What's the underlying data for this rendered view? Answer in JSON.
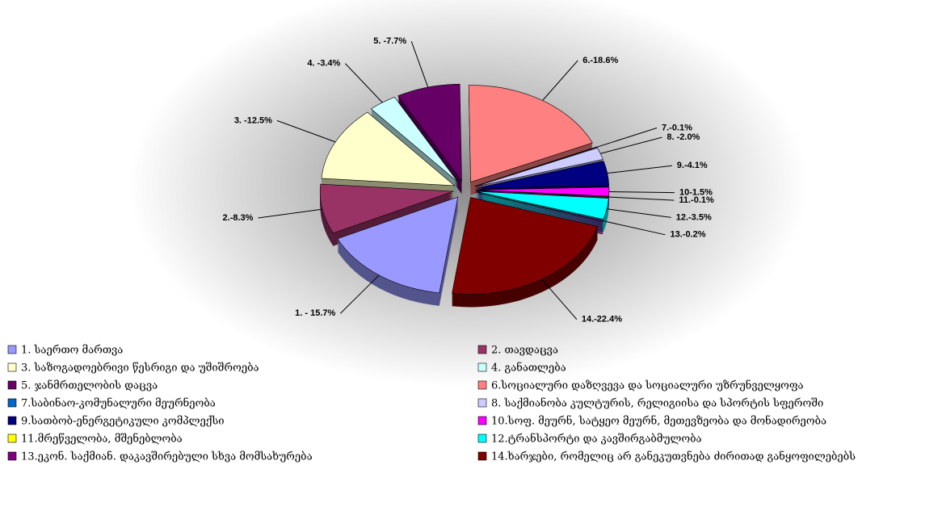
{
  "chart_data": {
    "type": "pie",
    "categories": [
      "1. საერთო მართვა",
      "2. თავდაცვა",
      "3. საზოგადოებრივი წესრიგი და უშიშროება",
      "4. განათლება",
      "5. ჯანმრთელობის დაცვა",
      "6.სოციალური დაზღვევა და სოციალური უზრუნველყოფა",
      "7.საბინაო-კომუნალური მეურნეობა",
      "8. საქმიანობა კულტურის, რელიგიისა და სპორტის სფეროში",
      "9.სათბობ-ენერგეტიკული კომპლექსი",
      "10.სოფ. მეურნ, სატყეო მეურნ, მეთევზეობა და მონადირეობა",
      "11.მრეწველობა, მშენებლობა",
      "12.ტრანსპორტი და კავშირგაბმულობა",
      "13.ეკონ. საქმიან. დაკავშირებული სხვა მომსახურება",
      "14.ხარჯები, რომელიც არ განეკუთვნება ძირითად განყოფილებებს"
    ],
    "values": [
      15.7,
      8.3,
      12.5,
      3.4,
      7.7,
      18.6,
      0.1,
      2.0,
      4.1,
      1.5,
      0.1,
      3.5,
      0.2,
      22.4
    ],
    "value_labels": [
      "1. - 15.7%",
      "2.-8.3%",
      "3. -12.5%",
      "4. -3.4%",
      "5. -7.7%",
      "6.-18.6%",
      "7.-0.1%",
      "8. -2.0%",
      "9.-4.1%",
      "10-1.5%",
      "11.-0.1%",
      "12.-3.5%",
      "13.-0.2%",
      "14.-22.4%"
    ],
    "colors": [
      "#9999ff",
      "#993366",
      "#ffffcc",
      "#ccffff",
      "#660066",
      "#ff8080",
      "#0066cc",
      "#ccccff",
      "#000080",
      "#ff00ff",
      "#ffff00",
      "#00ffff",
      "#800080",
      "#800000"
    ],
    "legend": "bottom"
  }
}
